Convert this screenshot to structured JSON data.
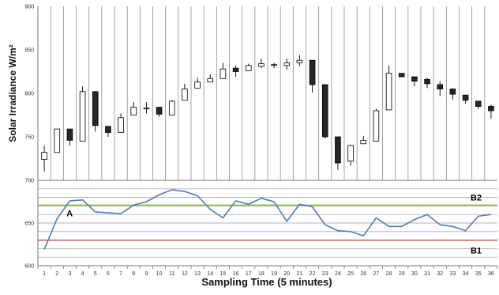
{
  "chart_data": [
    {
      "type": "candlestick",
      "ylabel": "Solar Irradiance W/m²",
      "ylim": [
        700,
        900
      ],
      "yticks": [
        700,
        750,
        800,
        850,
        900
      ],
      "grid": "vertical",
      "x": [
        1,
        2,
        3,
        4,
        5,
        6,
        7,
        8,
        9,
        10,
        11,
        12,
        13,
        14,
        15,
        16,
        17,
        18,
        19,
        20,
        21,
        22,
        23,
        24,
        25,
        26,
        27,
        28,
        29,
        30,
        31,
        32,
        33,
        34,
        35,
        36
      ],
      "candles": [
        {
          "o": 724,
          "c": 732,
          "h": 740,
          "l": 710
        },
        {
          "o": 732,
          "c": 759,
          "h": 759,
          "l": 732
        },
        {
          "o": 759,
          "c": 746,
          "h": 759,
          "l": 740
        },
        {
          "o": 745,
          "c": 802,
          "h": 808,
          "l": 745
        },
        {
          "o": 802,
          "c": 763,
          "h": 802,
          "l": 756
        },
        {
          "o": 762,
          "c": 755,
          "h": 762,
          "l": 750
        },
        {
          "o": 755,
          "c": 772,
          "h": 777,
          "l": 755
        },
        {
          "o": 775,
          "c": 784,
          "h": 790,
          "l": 775
        },
        {
          "o": 783,
          "c": 783,
          "h": 790,
          "l": 777
        },
        {
          "o": 784,
          "c": 776,
          "h": 784,
          "l": 773
        },
        {
          "o": 775,
          "c": 791,
          "h": 792,
          "l": 775
        },
        {
          "o": 792,
          "c": 805,
          "h": 811,
          "l": 792
        },
        {
          "o": 806,
          "c": 813,
          "h": 818,
          "l": 806
        },
        {
          "o": 813,
          "c": 817,
          "h": 822,
          "l": 813
        },
        {
          "o": 817,
          "c": 828,
          "h": 835,
          "l": 817
        },
        {
          "o": 829,
          "c": 825,
          "h": 832,
          "l": 819
        },
        {
          "o": 826,
          "c": 832,
          "h": 834,
          "l": 826
        },
        {
          "o": 831,
          "c": 834,
          "h": 840,
          "l": 829
        },
        {
          "o": 833,
          "c": 833,
          "h": 835,
          "l": 829
        },
        {
          "o": 832,
          "c": 835,
          "h": 840,
          "l": 827
        },
        {
          "o": 835,
          "c": 838,
          "h": 844,
          "l": 831
        },
        {
          "o": 838,
          "c": 810,
          "h": 838,
          "l": 801
        },
        {
          "o": 810,
          "c": 750,
          "h": 810,
          "l": 748
        },
        {
          "o": 750,
          "c": 720,
          "h": 750,
          "l": 712
        },
        {
          "o": 722,
          "c": 740,
          "h": 741,
          "l": 717
        },
        {
          "o": 742,
          "c": 746,
          "h": 751,
          "l": 742
        },
        {
          "o": 745,
          "c": 780,
          "h": 782,
          "l": 745
        },
        {
          "o": 781,
          "c": 823,
          "h": 832,
          "l": 781
        },
        {
          "o": 823,
          "c": 819,
          "h": 823,
          "l": 819
        },
        {
          "o": 819,
          "c": 814,
          "h": 819,
          "l": 808
        },
        {
          "o": 816,
          "c": 811,
          "h": 818,
          "l": 806
        },
        {
          "o": 810,
          "c": 805,
          "h": 814,
          "l": 797
        },
        {
          "o": 805,
          "c": 799,
          "h": 806,
          "l": 793
        },
        {
          "o": 798,
          "c": 792,
          "h": 798,
          "l": 788
        },
        {
          "o": 791,
          "c": 785,
          "h": 791,
          "l": 782
        },
        {
          "o": 785,
          "c": 780,
          "h": 787,
          "l": 771
        }
      ]
    },
    {
      "type": "line",
      "xlabel": "Sampling Time (5 minutes)",
      "ylim": [
        600,
        700
      ],
      "yticks": [
        600,
        650,
        700
      ],
      "grid": "horizontal",
      "x": [
        1,
        2,
        3,
        4,
        5,
        6,
        7,
        8,
        9,
        10,
        11,
        12,
        13,
        14,
        15,
        16,
        17,
        18,
        19,
        20,
        21,
        22,
        23,
        24,
        25,
        26,
        27,
        28,
        29,
        30,
        31,
        32,
        33,
        34,
        35,
        36
      ],
      "series": [
        {
          "name": "A",
          "color": "#4a7ebb",
          "values": [
            619,
            655,
            676,
            677,
            663,
            662,
            661,
            671,
            675,
            683,
            689,
            687,
            682,
            666,
            656,
            676,
            672,
            679,
            675,
            652,
            672,
            669,
            648,
            641,
            640,
            635,
            656,
            646,
            646,
            654,
            660,
            648,
            646,
            641,
            658,
            660
          ]
        }
      ],
      "reference_lines": [
        {
          "name": "B2",
          "value": 671,
          "color": "#8cba3e"
        },
        {
          "name": "B1",
          "value": 630,
          "color": "#be3a36"
        }
      ]
    }
  ]
}
